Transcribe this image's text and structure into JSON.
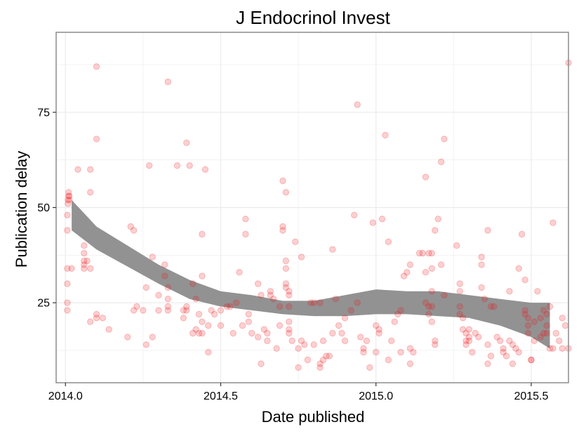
{
  "chart_data": {
    "type": "scatter",
    "title": "J Endocrinol Invest",
    "xlabel": "Date published",
    "ylabel": "Publication delay",
    "xlim": [
      2013.97,
      2015.62
    ],
    "ylim": [
      4,
      96
    ],
    "x_ticks": [
      {
        "value": 2014.0,
        "label": "2014.0"
      },
      {
        "value": 2014.5,
        "label": "2014.5"
      },
      {
        "value": 2015.0,
        "label": "2015.0"
      },
      {
        "value": 2015.5,
        "label": "2015.5"
      }
    ],
    "y_ticks": [
      {
        "value": 25,
        "label": "25"
      },
      {
        "value": 50,
        "label": "50"
      },
      {
        "value": 75,
        "label": "75"
      }
    ],
    "minor_x": [
      2014.25,
      2014.75,
      2015.25
    ],
    "minor_y": [
      12.5,
      37.5,
      62.5,
      87.5
    ],
    "grid": true,
    "legend": "none",
    "colors": {
      "points": "#f0161b",
      "band": "#8c8c8c",
      "grid": "#ebebeb",
      "border": "#8c8c8c"
    },
    "points": [
      [
        2014.006,
        34
      ],
      [
        2014.006,
        30
      ],
      [
        2014.006,
        23
      ],
      [
        2014.006,
        25
      ],
      [
        2014.006,
        44
      ],
      [
        2014.006,
        48
      ],
      [
        2014.008,
        51
      ],
      [
        2014.008,
        52
      ],
      [
        2014.01,
        53
      ],
      [
        2014.01,
        54
      ],
      [
        2014.012,
        52
      ],
      [
        2014.012,
        53
      ],
      [
        2014.02,
        34
      ],
      [
        2014.04,
        60
      ],
      [
        2014.06,
        34
      ],
      [
        2014.06,
        35
      ],
      [
        2014.06,
        36
      ],
      [
        2014.06,
        38
      ],
      [
        2014.06,
        40
      ],
      [
        2014.07,
        36
      ],
      [
        2014.08,
        20
      ],
      [
        2014.08,
        54
      ],
      [
        2014.08,
        60
      ],
      [
        2014.08,
        34
      ],
      [
        2014.1,
        87
      ],
      [
        2014.1,
        68
      ],
      [
        2014.1,
        22
      ],
      [
        2014.1,
        21
      ],
      [
        2014.12,
        21
      ],
      [
        2014.14,
        18
      ],
      [
        2014.2,
        16
      ],
      [
        2014.21,
        45
      ],
      [
        2014.22,
        44
      ],
      [
        2014.22,
        23
      ],
      [
        2014.23,
        24
      ],
      [
        2014.25,
        23
      ],
      [
        2014.26,
        29
      ],
      [
        2014.26,
        14
      ],
      [
        2014.27,
        61
      ],
      [
        2014.28,
        16
      ],
      [
        2014.28,
        37
      ],
      [
        2014.3,
        27
      ],
      [
        2014.3,
        23
      ],
      [
        2014.33,
        83
      ],
      [
        2014.32,
        35
      ],
      [
        2014.32,
        32
      ],
      [
        2014.33,
        29
      ],
      [
        2014.33,
        26
      ],
      [
        2014.33,
        24
      ],
      [
        2014.33,
        23
      ],
      [
        2014.36,
        61
      ],
      [
        2014.38,
        21
      ],
      [
        2014.38,
        23
      ],
      [
        2014.39,
        23
      ],
      [
        2014.39,
        24
      ],
      [
        2014.39,
        67
      ],
      [
        2014.4,
        61
      ],
      [
        2014.41,
        30
      ],
      [
        2014.41,
        17
      ],
      [
        2014.42,
        18
      ],
      [
        2014.42,
        26
      ],
      [
        2014.43,
        17
      ],
      [
        2014.43,
        22
      ],
      [
        2014.44,
        43
      ],
      [
        2014.44,
        32
      ],
      [
        2014.44,
        17
      ],
      [
        2014.44,
        20
      ],
      [
        2014.45,
        60
      ],
      [
        2014.46,
        19
      ],
      [
        2014.46,
        12
      ],
      [
        2014.47,
        23
      ],
      [
        2014.48,
        22
      ],
      [
        2014.5,
        23
      ],
      [
        2014.5,
        19
      ],
      [
        2014.52,
        24
      ],
      [
        2014.53,
        24
      ],
      [
        2014.54,
        17
      ],
      [
        2014.55,
        25
      ],
      [
        2014.56,
        33
      ],
      [
        2014.57,
        19
      ],
      [
        2014.58,
        47
      ],
      [
        2014.58,
        43
      ],
      [
        2014.59,
        22
      ],
      [
        2014.59,
        20
      ],
      [
        2014.6,
        17
      ],
      [
        2014.62,
        30
      ],
      [
        2014.62,
        16
      ],
      [
        2014.63,
        9
      ],
      [
        2014.63,
        27
      ],
      [
        2014.64,
        18
      ],
      [
        2014.65,
        15
      ],
      [
        2014.65,
        17
      ],
      [
        2014.66,
        28
      ],
      [
        2014.66,
        27
      ],
      [
        2014.67,
        26
      ],
      [
        2014.68,
        13
      ],
      [
        2014.69,
        19
      ],
      [
        2014.69,
        24
      ],
      [
        2014.7,
        57
      ],
      [
        2014.7,
        45
      ],
      [
        2014.7,
        44
      ],
      [
        2014.71,
        54
      ],
      [
        2014.71,
        34
      ],
      [
        2014.71,
        36
      ],
      [
        2014.71,
        30
      ],
      [
        2014.71,
        29
      ],
      [
        2014.72,
        28
      ],
      [
        2014.72,
        27
      ],
      [
        2014.72,
        24
      ],
      [
        2014.72,
        20
      ],
      [
        2014.72,
        18
      ],
      [
        2014.72,
        17
      ],
      [
        2014.73,
        15
      ],
      [
        2014.74,
        41
      ],
      [
        2014.75,
        13
      ],
      [
        2014.75,
        8
      ],
      [
        2014.76,
        37
      ],
      [
        2014.76,
        15
      ],
      [
        2014.77,
        14
      ],
      [
        2014.78,
        10
      ],
      [
        2014.79,
        25
      ],
      [
        2014.8,
        14
      ],
      [
        2014.8,
        25
      ],
      [
        2014.82,
        25
      ],
      [
        2014.82,
        9
      ],
      [
        2014.82,
        8
      ],
      [
        2014.83,
        15
      ],
      [
        2014.83,
        10
      ],
      [
        2014.84,
        11
      ],
      [
        2014.85,
        11
      ],
      [
        2014.86,
        39
      ],
      [
        2014.86,
        17
      ],
      [
        2014.87,
        26
      ],
      [
        2014.88,
        19
      ],
      [
        2014.89,
        17
      ],
      [
        2014.9,
        21
      ],
      [
        2014.9,
        15
      ],
      [
        2014.92,
        23
      ],
      [
        2014.93,
        48
      ],
      [
        2014.94,
        25
      ],
      [
        2014.94,
        77
      ],
      [
        2014.95,
        16
      ],
      [
        2014.96,
        13
      ],
      [
        2014.96,
        12
      ],
      [
        2014.97,
        15
      ],
      [
        2014.98,
        8
      ],
      [
        2014.99,
        46
      ],
      [
        2015.0,
        12
      ],
      [
        2015.0,
        19
      ],
      [
        2015.01,
        18
      ],
      [
        2015.01,
        17
      ],
      [
        2015.02,
        47
      ],
      [
        2015.03,
        69
      ],
      [
        2015.04,
        41
      ],
      [
        2015.04,
        10
      ],
      [
        2015.05,
        15
      ],
      [
        2015.06,
        20
      ],
      [
        2015.07,
        22
      ],
      [
        2015.08,
        23
      ],
      [
        2015.08,
        12
      ],
      [
        2015.09,
        32
      ],
      [
        2015.1,
        33
      ],
      [
        2015.11,
        35
      ],
      [
        2015.11,
        13
      ],
      [
        2015.11,
        9
      ],
      [
        2015.12,
        12
      ],
      [
        2015.14,
        38
      ],
      [
        2015.15,
        38
      ],
      [
        2015.16,
        58
      ],
      [
        2015.16,
        33
      ],
      [
        2015.16,
        25
      ],
      [
        2015.17,
        38
      ],
      [
        2015.17,
        24
      ],
      [
        2015.17,
        22
      ],
      [
        2015.18,
        34
      ],
      [
        2015.18,
        38
      ],
      [
        2015.18,
        28
      ],
      [
        2015.18,
        24
      ],
      [
        2015.18,
        20
      ],
      [
        2015.19,
        44
      ],
      [
        2015.19,
        15
      ],
      [
        2015.19,
        14
      ],
      [
        2015.2,
        47
      ],
      [
        2015.21,
        62
      ],
      [
        2015.21,
        35
      ],
      [
        2015.22,
        68
      ],
      [
        2015.22,
        27
      ],
      [
        2015.26,
        40
      ],
      [
        2015.27,
        30
      ],
      [
        2015.27,
        28
      ],
      [
        2015.27,
        24
      ],
      [
        2015.27,
        22
      ],
      [
        2015.28,
        21
      ],
      [
        2015.28,
        18
      ],
      [
        2015.29,
        17
      ],
      [
        2015.29,
        15
      ],
      [
        2015.29,
        14
      ],
      [
        2015.3,
        18
      ],
      [
        2015.3,
        16
      ],
      [
        2015.3,
        15
      ],
      [
        2015.31,
        12
      ],
      [
        2015.32,
        17
      ],
      [
        2015.33,
        16
      ],
      [
        2015.34,
        37
      ],
      [
        2015.34,
        35
      ],
      [
        2015.34,
        29
      ],
      [
        2015.35,
        26
      ],
      [
        2015.36,
        44
      ],
      [
        2015.36,
        14
      ],
      [
        2015.36,
        9
      ],
      [
        2015.37,
        24
      ],
      [
        2015.37,
        11
      ],
      [
        2015.38,
        24
      ],
      [
        2015.39,
        16
      ],
      [
        2015.4,
        15
      ],
      [
        2015.41,
        13
      ],
      [
        2015.41,
        12
      ],
      [
        2015.42,
        11
      ],
      [
        2015.43,
        28
      ],
      [
        2015.43,
        15
      ],
      [
        2015.44,
        14
      ],
      [
        2015.44,
        9
      ],
      [
        2015.45,
        13
      ],
      [
        2015.46,
        34
      ],
      [
        2015.46,
        12
      ],
      [
        2015.47,
        43
      ],
      [
        2015.48,
        31
      ],
      [
        2015.48,
        23
      ],
      [
        2015.48,
        22
      ],
      [
        2015.49,
        21
      ],
      [
        2015.49,
        19
      ],
      [
        2015.49,
        17
      ],
      [
        2015.5,
        10
      ],
      [
        2015.5,
        10
      ],
      [
        2015.51,
        15
      ],
      [
        2015.51,
        20
      ],
      [
        2015.52,
        28
      ],
      [
        2015.53,
        21
      ],
      [
        2015.53,
        16
      ],
      [
        2015.54,
        23
      ],
      [
        2015.54,
        17
      ],
      [
        2015.55,
        17
      ],
      [
        2015.55,
        19
      ],
      [
        2015.55,
        22
      ],
      [
        2015.56,
        24
      ],
      [
        2015.56,
        13
      ],
      [
        2015.57,
        13
      ],
      [
        2015.57,
        46
      ],
      [
        2015.58,
        17
      ],
      [
        2015.59,
        15
      ],
      [
        2015.6,
        13
      ],
      [
        2015.6,
        21
      ],
      [
        2015.61,
        19
      ],
      [
        2015.62,
        88
      ],
      [
        2015.62,
        13
      ]
    ],
    "band": {
      "x": [
        2014.02,
        2014.1,
        2014.2,
        2014.3,
        2014.4,
        2014.5,
        2014.6,
        2014.7,
        2014.8,
        2014.9,
        2015.0,
        2015.1,
        2015.2,
        2015.3,
        2015.4,
        2015.5,
        2015.56
      ],
      "upper": [
        52,
        45,
        40,
        35,
        31,
        28,
        27,
        25.5,
        25.5,
        27,
        28.5,
        28,
        28,
        27,
        26,
        25,
        25
      ],
      "lower": [
        44,
        39,
        34.5,
        30,
        26,
        24,
        23,
        22,
        21.5,
        21.5,
        22,
        22,
        21.5,
        21,
        19,
        16,
        13
      ]
    }
  }
}
